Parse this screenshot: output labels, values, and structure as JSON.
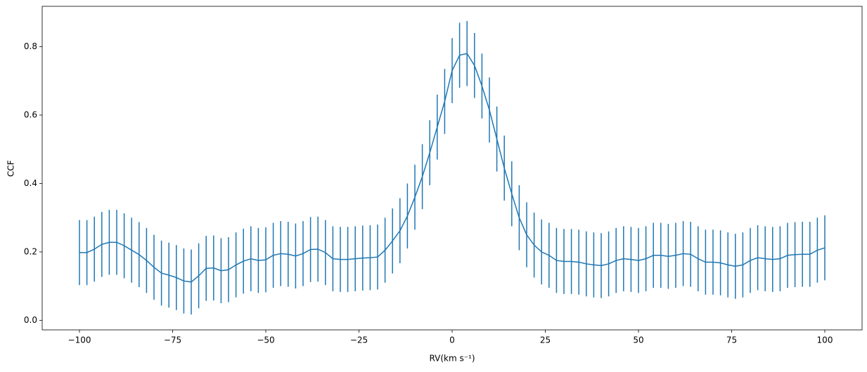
{
  "chart_data": {
    "type": "errorbar_line",
    "x_label": "RV(km s⁻¹)",
    "y_label": "CCF",
    "x": [
      -100,
      -98,
      -96,
      -94,
      -92,
      -90,
      -88,
      -86,
      -84,
      -82,
      -80,
      -78,
      -76,
      -74,
      -72,
      -70,
      -68,
      -66,
      -64,
      -62,
      -60,
      -58,
      -56,
      -54,
      -52,
      -50,
      -48,
      -46,
      -44,
      -42,
      -40,
      -38,
      -36,
      -34,
      -32,
      -30,
      -28,
      -26,
      -24,
      -22,
      -20,
      -18,
      -16,
      -14,
      -12,
      -10,
      -8,
      -6,
      -4,
      -2,
      0,
      2,
      4,
      6,
      8,
      10,
      12,
      14,
      16,
      18,
      20,
      22,
      24,
      26,
      28,
      30,
      32,
      34,
      36,
      38,
      40,
      42,
      44,
      46,
      48,
      50,
      52,
      54,
      56,
      58,
      60,
      62,
      64,
      66,
      68,
      70,
      72,
      74,
      76,
      78,
      80,
      82,
      84,
      86,
      88,
      90,
      92,
      94,
      96,
      98,
      100
    ],
    "series": [
      {
        "color": "#1f77b4",
        "values": [
          0.198,
          0.198,
          0.208,
          0.222,
          0.228,
          0.228,
          0.218,
          0.205,
          0.192,
          0.175,
          0.155,
          0.138,
          0.132,
          0.125,
          0.115,
          0.112,
          0.13,
          0.152,
          0.153,
          0.145,
          0.148,
          0.162,
          0.173,
          0.18,
          0.175,
          0.177,
          0.19,
          0.195,
          0.193,
          0.188,
          0.195,
          0.207,
          0.208,
          0.198,
          0.18,
          0.178,
          0.178,
          0.18,
          0.182,
          0.183,
          0.185,
          0.205,
          0.232,
          0.262,
          0.305,
          0.36,
          0.42,
          0.49,
          0.565,
          0.64,
          0.73,
          0.775,
          0.78,
          0.745,
          0.685,
          0.615,
          0.53,
          0.445,
          0.37,
          0.3,
          0.25,
          0.22,
          0.2,
          0.19,
          0.175,
          0.172,
          0.172,
          0.17,
          0.165,
          0.162,
          0.16,
          0.165,
          0.175,
          0.18,
          0.178,
          0.175,
          0.18,
          0.19,
          0.19,
          0.187,
          0.19,
          0.195,
          0.193,
          0.18,
          0.17,
          0.17,
          0.168,
          0.162,
          0.158,
          0.162,
          0.175,
          0.183,
          0.18,
          0.178,
          0.18,
          0.19,
          0.192,
          0.193,
          0.193,
          0.205,
          0.212
        ],
        "errors": [
          0.095,
          0.095,
          0.095,
          0.095,
          0.095,
          0.095,
          0.095,
          0.095,
          0.095,
          0.095,
          0.095,
          0.095,
          0.095,
          0.095,
          0.095,
          0.095,
          0.095,
          0.095,
          0.095,
          0.095,
          0.095,
          0.095,
          0.095,
          0.095,
          0.095,
          0.095,
          0.095,
          0.095,
          0.095,
          0.095,
          0.095,
          0.095,
          0.095,
          0.095,
          0.095,
          0.095,
          0.095,
          0.095,
          0.095,
          0.095,
          0.095,
          0.095,
          0.095,
          0.095,
          0.095,
          0.095,
          0.095,
          0.095,
          0.095,
          0.095,
          0.095,
          0.095,
          0.095,
          0.095,
          0.095,
          0.095,
          0.095,
          0.095,
          0.095,
          0.095,
          0.095,
          0.095,
          0.095,
          0.095,
          0.095,
          0.095,
          0.095,
          0.095,
          0.095,
          0.095,
          0.095,
          0.095,
          0.095,
          0.095,
          0.095,
          0.095,
          0.095,
          0.095,
          0.095,
          0.095,
          0.095,
          0.095,
          0.095,
          0.095,
          0.095,
          0.095,
          0.095,
          0.095,
          0.095,
          0.095,
          0.095,
          0.095,
          0.095,
          0.095,
          0.095,
          0.095,
          0.095,
          0.095,
          0.095,
          0.095,
          0.095
        ]
      }
    ],
    "xlim": [
      -110,
      110
    ],
    "xticks": [
      {
        "value": -100,
        "label": "−100"
      },
      {
        "value": -75,
        "label": "−75"
      },
      {
        "value": -50,
        "label": "−50"
      },
      {
        "value": -25,
        "label": "−25"
      },
      0,
      25,
      50,
      75,
      100
    ],
    "ylim": [
      -0.028,
      0.918
    ],
    "yticks": [
      {
        "value": 0,
        "label": "0.0"
      },
      0.2,
      0.4,
      0.6,
      0.8
    ]
  }
}
